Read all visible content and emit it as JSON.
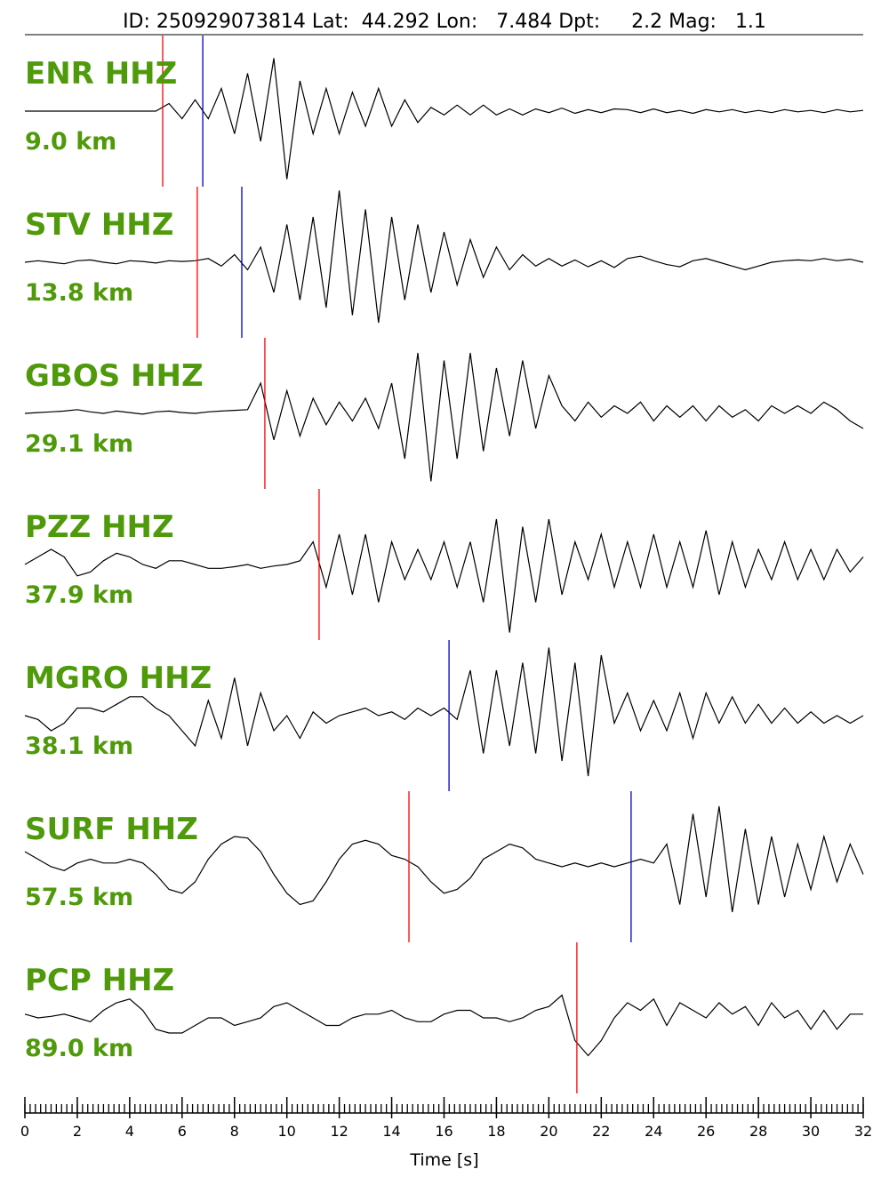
{
  "chart_data": {
    "type": "waveform",
    "title": "ID: 250929073814 Lat:  44.292 Lon:   7.484 Dpt:     2.2 Mag:   1.1",
    "xlabel": "Time [s]",
    "xlim": [
      0,
      32
    ],
    "xticks": [
      0,
      2,
      4,
      6,
      8,
      10,
      12,
      14,
      16,
      18,
      20,
      22,
      24,
      26,
      28,
      30,
      32
    ],
    "minor_tick_interval": 0.2,
    "ylim": [
      -1,
      1
    ],
    "trace_color": "#000000",
    "label_color": "#4f9a0a",
    "x": [
      0,
      0.5,
      1,
      1.5,
      2,
      2.5,
      3,
      3.5,
      4,
      4.5,
      5,
      5.5,
      6,
      6.5,
      7,
      7.5,
      8,
      8.5,
      9,
      9.5,
      10,
      10.5,
      11,
      11.5,
      12,
      12.5,
      13,
      13.5,
      14,
      14.5,
      15,
      15.5,
      16,
      16.5,
      17,
      17.5,
      18,
      18.5,
      19,
      19.5,
      20,
      20.5,
      21,
      21.5,
      22,
      22.5,
      23,
      23.5,
      24,
      24.5,
      25,
      25.5,
      26,
      26.5,
      27,
      27.5,
      28,
      28.5,
      29,
      29.5,
      30,
      30.5,
      31,
      31.5,
      32
    ],
    "traces": [
      {
        "station": "ENR HHZ",
        "distance": "9.0 km",
        "picks": [
          {
            "time": 5.26,
            "color": "#ff0000"
          },
          {
            "time": 6.79,
            "color": "#0000cc"
          }
        ],
        "values": [
          0,
          0,
          0,
          0,
          0,
          0,
          0,
          0,
          0,
          0,
          0,
          0.1,
          -0.1,
          0.15,
          -0.1,
          0.3,
          -0.3,
          0.5,
          -0.4,
          0.7,
          -0.9,
          0.4,
          -0.3,
          0.3,
          -0.3,
          0.25,
          -0.2,
          0.3,
          -0.2,
          0.15,
          -0.15,
          0.05,
          -0.05,
          0.08,
          -0.05,
          0.08,
          -0.05,
          0.03,
          -0.05,
          0.03,
          -0.02,
          0.04,
          -0.03,
          0.02,
          -0.02,
          0.03,
          0.02,
          -0.02,
          0.03,
          -0.02,
          0.01,
          -0.03,
          0.02,
          -0.01,
          0.02,
          -0.02,
          0.01,
          -0.02,
          0.02,
          -0.01,
          0.01,
          -0.02,
          0.02,
          -0.01,
          0.01
        ]
      },
      {
        "station": "STV HHZ",
        "distance": "13.8 km",
        "picks": [
          {
            "time": 6.58,
            "color": "#ff0000"
          },
          {
            "time": 8.28,
            "color": "#0000cc"
          }
        ],
        "values": [
          0,
          0.02,
          0,
          -0.02,
          0.02,
          0.03,
          0,
          -0.02,
          0.02,
          0.01,
          -0.01,
          0.02,
          0.01,
          0.02,
          0.05,
          -0.05,
          0.1,
          -0.1,
          0.2,
          -0.4,
          0.5,
          -0.5,
          0.6,
          -0.6,
          0.95,
          -0.7,
          0.7,
          -0.8,
          0.6,
          -0.5,
          0.5,
          -0.4,
          0.4,
          -0.3,
          0.3,
          -0.2,
          0.2,
          -0.1,
          0.1,
          -0.05,
          0.05,
          -0.05,
          0.03,
          -0.06,
          0.02,
          -0.07,
          0.05,
          0.08,
          0.02,
          -0.03,
          -0.06,
          0.02,
          0.05,
          0,
          -0.05,
          -0.1,
          -0.05,
          0,
          0.02,
          0.03,
          0.02,
          0.05,
          0.02,
          0.04,
          0
        ]
      },
      {
        "station": "GBOS HHZ",
        "distance": "29.1 km",
        "picks": [
          {
            "time": 9.16,
            "color": "#ff0000"
          }
        ],
        "values": [
          0,
          0.01,
          0.02,
          0.03,
          0.05,
          0.02,
          0,
          0.03,
          0.01,
          -0.01,
          0.02,
          0.03,
          0.01,
          0,
          0.02,
          0.03,
          0.04,
          0.05,
          0.4,
          -0.35,
          0.3,
          -0.3,
          0.2,
          -0.15,
          0.15,
          -0.1,
          0.2,
          -0.2,
          0.4,
          -0.6,
          0.8,
          -0.9,
          0.7,
          -0.6,
          0.8,
          -0.5,
          0.6,
          -0.3,
          0.7,
          -0.2,
          0.5,
          0.1,
          -0.1,
          0.15,
          -0.05,
          0.1,
          0,
          0.15,
          -0.1,
          0.1,
          -0.05,
          0.1,
          -0.1,
          0.1,
          -0.05,
          0.05,
          -0.1,
          0.1,
          0,
          0.1,
          0,
          0.15,
          0.05,
          -0.1,
          -0.2
        ]
      },
      {
        "station": "PZZ HHZ",
        "distance": "37.9 km",
        "picks": [
          {
            "time": 11.23,
            "color": "#ff0000"
          }
        ],
        "values": [
          0,
          0.1,
          0.2,
          0.1,
          -0.15,
          -0.1,
          0.05,
          0.15,
          0.1,
          0,
          -0.05,
          0.05,
          0.05,
          0,
          -0.05,
          -0.05,
          -0.03,
          0,
          -0.05,
          -0.02,
          0,
          0.05,
          0.3,
          -0.3,
          0.4,
          -0.4,
          0.4,
          -0.5,
          0.3,
          -0.2,
          0.2,
          -0.2,
          0.3,
          -0.3,
          0.3,
          -0.5,
          0.6,
          -0.9,
          0.5,
          -0.5,
          0.6,
          -0.4,
          0.3,
          -0.2,
          0.4,
          -0.3,
          0.3,
          -0.3,
          0.4,
          -0.3,
          0.3,
          -0.3,
          0.45,
          -0.4,
          0.3,
          -0.3,
          0.2,
          -0.2,
          0.3,
          -0.2,
          0.2,
          -0.2,
          0.2,
          -0.1,
          0.1
        ]
      },
      {
        "station": "MGRO HHZ",
        "distance": "38.1 km",
        "picks": [
          {
            "time": 16.19,
            "color": "#0000cc"
          }
        ],
        "values": [
          0,
          -0.05,
          -0.2,
          -0.1,
          0.1,
          0.1,
          0.05,
          0.15,
          0.25,
          0.25,
          0.1,
          0,
          -0.2,
          -0.4,
          0.2,
          -0.3,
          0.5,
          -0.4,
          0.3,
          -0.2,
          0,
          -0.3,
          0.05,
          -0.1,
          0,
          0.05,
          0.1,
          0,
          0.05,
          -0.05,
          0.1,
          0,
          0.1,
          -0.05,
          0.6,
          -0.5,
          0.6,
          -0.4,
          0.7,
          -0.5,
          0.9,
          -0.6,
          0.7,
          -0.8,
          0.8,
          -0.1,
          0.3,
          -0.2,
          0.2,
          -0.2,
          0.3,
          -0.3,
          0.3,
          -0.1,
          0.25,
          -0.1,
          0.15,
          -0.1,
          0.1,
          -0.1,
          0.05,
          -0.1,
          0,
          -0.1,
          0
        ]
      },
      {
        "station": "SURF HHZ",
        "distance": "57.5 km",
        "picks": [
          {
            "time": 14.66,
            "color": "#ff0000"
          },
          {
            "time": 23.14,
            "color": "#0000cc"
          }
        ],
        "values": [
          0.2,
          0.1,
          0,
          -0.05,
          0.05,
          0.1,
          0.05,
          0.05,
          0.1,
          0.05,
          -0.1,
          -0.3,
          -0.35,
          -0.2,
          0.1,
          0.3,
          0.4,
          0.38,
          0.2,
          -0.1,
          -0.35,
          -0.5,
          -0.45,
          -0.2,
          0.1,
          0.3,
          0.35,
          0.3,
          0.15,
          0.1,
          0,
          -0.2,
          -0.35,
          -0.3,
          -0.15,
          0.1,
          0.2,
          0.3,
          0.25,
          0.1,
          0.05,
          0,
          0.05,
          0,
          0.05,
          0,
          0.05,
          0.1,
          0.05,
          0.3,
          -0.5,
          0.7,
          -0.4,
          0.8,
          -0.6,
          0.5,
          -0.5,
          0.4,
          -0.4,
          0.3,
          -0.3,
          0.4,
          -0.2,
          0.3,
          -0.1
        ]
      },
      {
        "station": "PCP HHZ",
        "distance": "89.0 km",
        "picks": [
          {
            "time": 21.07,
            "color": "#ff0000"
          }
        ],
        "values": [
          0.05,
          0,
          0.02,
          0.05,
          0,
          -0.05,
          0.1,
          0.2,
          0.25,
          0.1,
          -0.15,
          -0.2,
          -0.2,
          -0.1,
          0,
          0,
          -0.1,
          -0.05,
          0,
          0.15,
          0.2,
          0.1,
          0,
          -0.1,
          -0.1,
          0,
          0.05,
          0.05,
          0.1,
          0,
          -0.05,
          -0.05,
          0.05,
          0.1,
          0.1,
          0,
          0,
          -0.05,
          0,
          0.1,
          0.15,
          0.3,
          -0.3,
          -0.5,
          -0.3,
          0,
          0.2,
          0.1,
          0.25,
          -0.1,
          0.2,
          0.1,
          0,
          0.2,
          0.05,
          0.15,
          -0.1,
          0.2,
          0,
          0.1,
          -0.15,
          0.1,
          -0.15,
          0.05,
          0.05
        ]
      }
    ]
  }
}
